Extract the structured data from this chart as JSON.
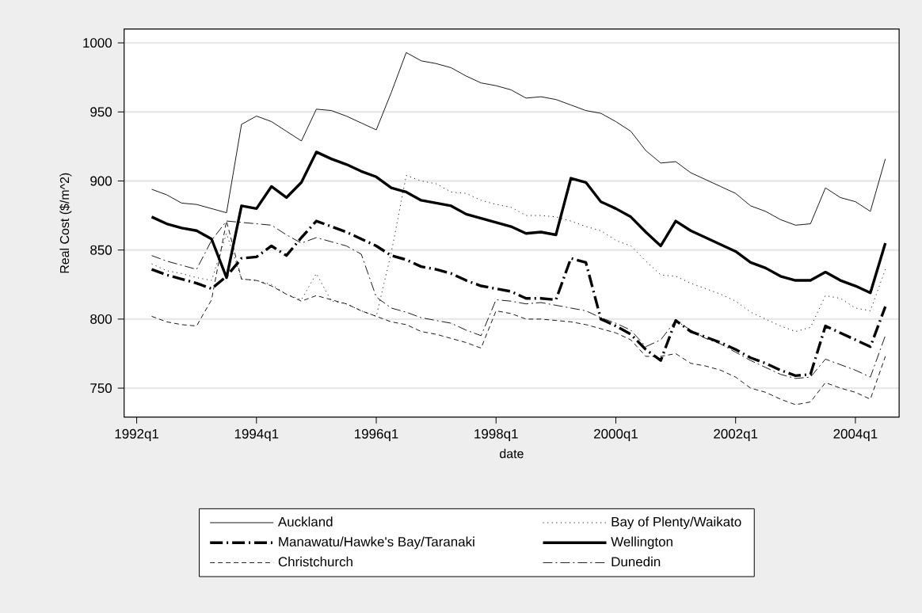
{
  "chart_data": {
    "type": "line",
    "xlabel": "date",
    "ylabel": "Real Cost ($/m^2)",
    "grid": "y",
    "legend": "bottom",
    "marker": "none",
    "x": [
      "1992-04",
      "1992-07",
      "1992-10",
      "1993-01",
      "1993-04",
      "1993-07",
      "1993-10",
      "1994-01",
      "1994-04",
      "1994-07",
      "1994-10",
      "1995-01",
      "1995-04",
      "1995-07",
      "1995-10",
      "1996-01",
      "1996-04",
      "1996-07",
      "1996-10",
      "1997-01",
      "1997-04",
      "1997-07",
      "1997-10",
      "1998-01",
      "1998-04",
      "1998-07",
      "1998-10",
      "1999-01",
      "1999-04",
      "1999-07",
      "1999-10",
      "2000-01",
      "2000-04",
      "2000-07",
      "2000-10",
      "2001-01",
      "2001-04",
      "2001-07",
      "2001-10",
      "2002-01",
      "2002-04",
      "2002-07",
      "2002-10",
      "2003-01",
      "2003-04",
      "2003-07",
      "2003-10",
      "2004-01",
      "2004-04",
      "2004-07"
    ],
    "xlim": [
      "1991-10-14",
      "2004-09-25"
    ],
    "xticks": [
      {
        "value": "1992-01",
        "label": "1992q1"
      },
      {
        "value": "1994-01",
        "label": "1994q1"
      },
      {
        "value": "1996-01",
        "label": "1996q1"
      },
      {
        "value": "1998-01",
        "label": "1998q1"
      },
      {
        "value": "2000-01",
        "label": "2000q1"
      },
      {
        "value": "2002-01",
        "label": "2002q1"
      },
      {
        "value": "2004-01",
        "label": "2004q1"
      }
    ],
    "ylim": [
      729,
      1010
    ],
    "yticks": [
      750,
      800,
      850,
      900,
      950,
      1000
    ],
    "series": [
      {
        "name": "Auckland",
        "color": "#000000",
        "line_style": "solid",
        "values": [
          894,
          890,
          884,
          883,
          880,
          877,
          941,
          947,
          943,
          936,
          929,
          952,
          951,
          947,
          942,
          937,
          964,
          993,
          987,
          985,
          982,
          976,
          971,
          969,
          966,
          960,
          961,
          959,
          955,
          951,
          949,
          943,
          936,
          922,
          913,
          914,
          906,
          901,
          896,
          891,
          882,
          878,
          872,
          868,
          869,
          895,
          888,
          885,
          878,
          916
        ]
      },
      {
        "name": "Bay of Plenty/Waikato",
        "color": "#000000",
        "line_style": "dotted",
        "values": [
          840,
          835,
          833,
          830,
          828,
          862,
          829,
          828,
          825,
          818,
          814,
          833,
          813,
          811,
          806,
          802,
          848,
          904,
          900,
          898,
          892,
          891,
          886,
          883,
          881,
          875,
          875,
          874,
          871,
          867,
          864,
          857,
          853,
          842,
          832,
          831,
          826,
          822,
          818,
          813,
          805,
          800,
          795,
          791,
          794,
          817,
          815,
          808,
          806,
          836
        ]
      },
      {
        "name": "Manawatu/Hawke's Bay/Taranaki",
        "color": "#000000",
        "line_style": "dashdot",
        "values": [
          836,
          832,
          829,
          826,
          822,
          831,
          844,
          845,
          853,
          846,
          859,
          871,
          867,
          863,
          858,
          853,
          846,
          843,
          838,
          836,
          833,
          828,
          824,
          822,
          820,
          815,
          815,
          814,
          844,
          841,
          800,
          795,
          789,
          778,
          770,
          799,
          791,
          787,
          783,
          778,
          772,
          768,
          763,
          759,
          760,
          795,
          790,
          785,
          780,
          809
        ]
      },
      {
        "name": "Wellington",
        "color": "#000000",
        "line_style": "solid",
        "values": [
          874,
          869,
          866,
          864,
          858,
          830,
          882,
          880,
          896,
          888,
          899,
          921,
          916,
          912,
          907,
          903,
          895,
          892,
          886,
          884,
          882,
          876,
          873,
          870,
          867,
          862,
          863,
          861,
          902,
          899,
          885,
          880,
          874,
          863,
          853,
          871,
          864,
          859,
          854,
          849,
          841,
          837,
          831,
          828,
          828,
          834,
          828,
          824,
          819,
          855
        ]
      },
      {
        "name": "Christchurch",
        "color": "#000000",
        "line_style": "dashed",
        "values": [
          802,
          798,
          796,
          795,
          814,
          871,
          829,
          828,
          824,
          818,
          813,
          817,
          814,
          811,
          806,
          802,
          798,
          796,
          791,
          789,
          786,
          783,
          779,
          806,
          804,
          800,
          800,
          799,
          798,
          796,
          793,
          790,
          785,
          773,
          773,
          775,
          768,
          766,
          763,
          758,
          750,
          747,
          742,
          738,
          740,
          754,
          750,
          747,
          742,
          773
        ]
      },
      {
        "name": "Dunedin",
        "color": "#000000",
        "line_style": "dashdot",
        "values": [
          846,
          842,
          839,
          836,
          857,
          871,
          870,
          869,
          868,
          861,
          855,
          859,
          856,
          853,
          847,
          816,
          808,
          805,
          801,
          799,
          797,
          792,
          788,
          814,
          813,
          811,
          812,
          810,
          808,
          806,
          801,
          797,
          792,
          780,
          785,
          799,
          792,
          786,
          782,
          776,
          770,
          765,
          760,
          757,
          758,
          771,
          767,
          763,
          758,
          788
        ]
      }
    ]
  }
}
